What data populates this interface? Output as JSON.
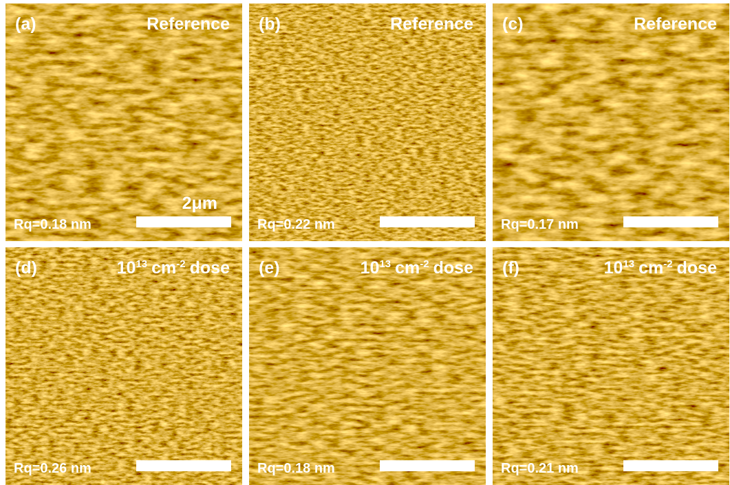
{
  "panels": [
    {
      "label": "(a)",
      "title": "Reference",
      "rq": "Rq=0.18 nm",
      "scale_label": "2μm"
    },
    {
      "label": "(b)",
      "title": "Reference",
      "rq": "Rq=0.22 nm"
    },
    {
      "label": "(c)",
      "title": "Reference",
      "rq": "Rq=0.17 nm"
    },
    {
      "label": "(d)",
      "title_parts": [
        "10",
        "13",
        "cm",
        "-2",
        "dose"
      ],
      "rq": "Rq=0.26 nm"
    },
    {
      "label": "(e)",
      "title_parts": [
        "10",
        "13",
        "cm",
        "-2",
        "dose"
      ],
      "rq": "Rq=0.18 nm"
    },
    {
      "label": "(f)",
      "title_parts": [
        "10",
        "13",
        "cm",
        "-2",
        "dose"
      ],
      "rq": "Rq=0.21 nm"
    }
  ]
}
